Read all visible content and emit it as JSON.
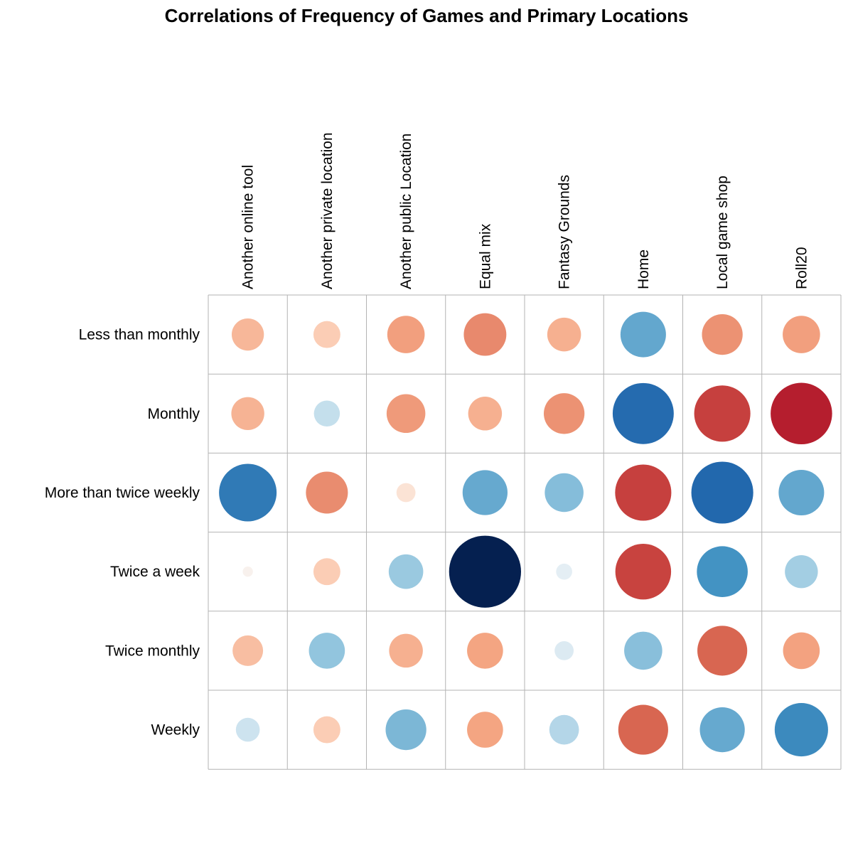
{
  "chart_data": {
    "type": "correlation-matrix",
    "title": "Correlations of Frequency of Games and Primary Locations",
    "rows": [
      "Less than monthly",
      "Monthly",
      "More than twice weekly",
      "Twice a week",
      "Twice monthly",
      "Weekly"
    ],
    "columns": [
      "Another online tool",
      "Another private location",
      "Another public Location",
      "Equal mix",
      "Fantasy Grounds",
      "Home",
      "Local game shop",
      "Roll20"
    ],
    "values": [
      [
        -0.2,
        -0.14,
        -0.27,
        -0.35,
        -0.22,
        0.4,
        -0.32,
        -0.27
      ],
      [
        -0.21,
        0.13,
        -0.29,
        -0.22,
        -0.32,
        0.72,
        -0.61,
        -0.73
      ],
      [
        0.64,
        -0.34,
        -0.07,
        0.39,
        0.29,
        -0.61,
        0.74,
        0.4
      ],
      [
        -0.02,
        -0.14,
        0.23,
        1.0,
        0.05,
        -0.6,
        0.5,
        0.21
      ],
      [
        -0.18,
        0.25,
        -0.22,
        -0.25,
        0.07,
        0.28,
        -0.48,
        -0.26
      ],
      [
        0.11,
        -0.14,
        0.32,
        -0.25,
        0.17,
        -0.48,
        0.39,
        0.55
      ]
    ],
    "legend": "none",
    "grid": true
  }
}
